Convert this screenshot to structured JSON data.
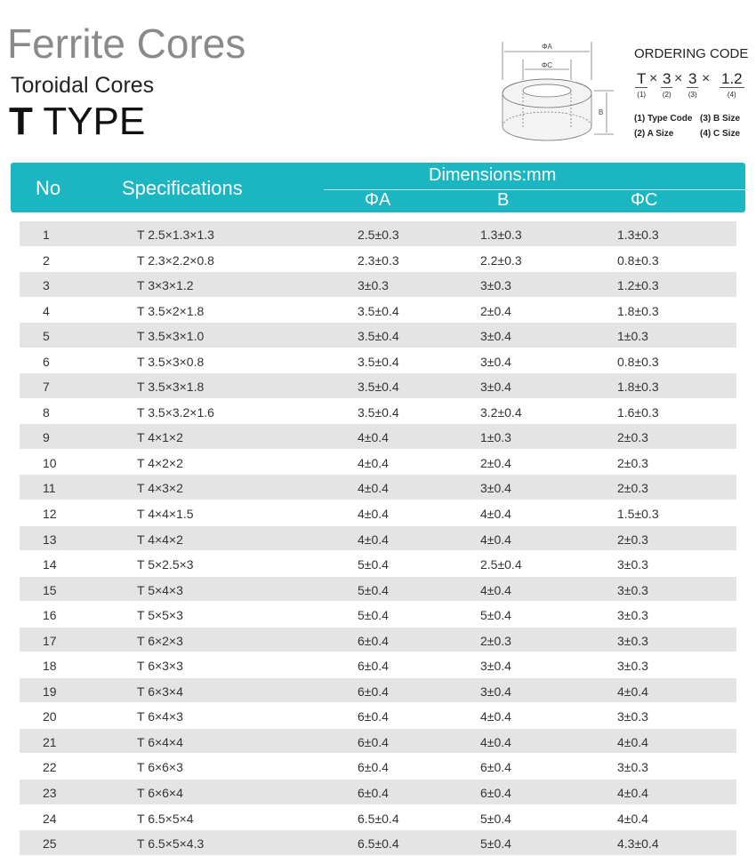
{
  "title": "Ferrite Cores",
  "subtitle": "Toroidal Cores",
  "type_prefix": "T",
  "type_suffix": "TYPE",
  "diagram": {
    "a": "ΦA",
    "c": "ΦC",
    "b": "B"
  },
  "ordering": {
    "title": "ORDERING CODE",
    "parts": [
      {
        "v": "T",
        "n": "(1)"
      },
      {
        "v": "3",
        "n": "(2)"
      },
      {
        "v": "3",
        "n": "(3)"
      },
      {
        "v": "1.2",
        "n": "(4)"
      }
    ],
    "sep": "×",
    "legend": [
      "(1) Type Code",
      "(3) B Size",
      "(2) A Size",
      "(4) C Size"
    ]
  },
  "colors": {
    "header": "#1bb6c1",
    "row_alt": "#e4e4e4"
  },
  "table": {
    "headers": {
      "no": "No",
      "spec": "Specifications",
      "dims": "Dimensions:mm",
      "a": "ΦA",
      "b": "B",
      "c": "ΦC"
    },
    "rows": [
      [
        "1",
        "T  2.5×1.3×1.3",
        "2.5±0.3",
        "1.3±0.3",
        "1.3±0.3"
      ],
      [
        "2",
        "T  2.3×2.2×0.8",
        "2.3±0.3",
        "2.2±0.3",
        "0.8±0.3"
      ],
      [
        "3",
        "T  3×3×1.2",
        "3±0.3",
        "3±0.3",
        "1.2±0.3"
      ],
      [
        "4",
        "T  3.5×2×1.8",
        "3.5±0.4",
        "2±0.4",
        "1.8±0.3"
      ],
      [
        "5",
        "T  3.5×3×1.0",
        "3.5±0.4",
        "3±0.4",
        "1±0.3"
      ],
      [
        "6",
        "T  3.5×3×0.8",
        "3.5±0.4",
        "3±0.4",
        "0.8±0.3"
      ],
      [
        "7",
        "T  3.5×3×1.8",
        "3.5±0.4",
        "3±0.4",
        "1.8±0.3"
      ],
      [
        "8",
        "T  3.5×3.2×1.6",
        "3.5±0.4",
        "3.2±0.4",
        "1.6±0.3"
      ],
      [
        "9",
        "T  4×1×2",
        "4±0.4",
        "1±0.3",
        "2±0.3"
      ],
      [
        "10",
        "T  4×2×2",
        "4±0.4",
        "2±0.4",
        "2±0.3"
      ],
      [
        "11",
        "T  4×3×2",
        "4±0.4",
        "3±0.4",
        "2±0.3"
      ],
      [
        "12",
        "T  4×4×1.5",
        "4±0.4",
        "4±0.4",
        "1.5±0.3"
      ],
      [
        "13",
        "T  4×4×2",
        "4±0.4",
        "4±0.4",
        "2±0.3"
      ],
      [
        "14",
        "T  5×2.5×3",
        "5±0.4",
        "2.5±0.4",
        "3±0.3"
      ],
      [
        "15",
        "T  5×4×3",
        "5±0.4",
        "4±0.4",
        "3±0.3"
      ],
      [
        "16",
        "T  5×5×3",
        "5±0.4",
        "5±0.4",
        "3±0.3"
      ],
      [
        "17",
        "T  6×2×3",
        "6±0.4",
        "2±0.3",
        "3±0.3"
      ],
      [
        "18",
        "T  6×3×3",
        "6±0.4",
        "3±0.4",
        "3±0.3"
      ],
      [
        "19",
        "T  6×3×4",
        "6±0.4",
        "3±0.4",
        "4±0.4"
      ],
      [
        "20",
        "T  6×4×3",
        "6±0.4",
        "4±0.4",
        "3±0.3"
      ],
      [
        "21",
        "T  6×4×4",
        "6±0.4",
        "4±0.4",
        "4±0.4"
      ],
      [
        "22",
        "T  6×6×3",
        "6±0.4",
        "6±0.4",
        "3±0.3"
      ],
      [
        "23",
        "T  6×6×4",
        "6±0.4",
        "6±0.4",
        "4±0.4"
      ],
      [
        "24",
        "T  6.5×5×4",
        "6.5±0.4",
        "5±0.4",
        "4±0.4"
      ],
      [
        "25",
        "T  6.5×5×4.3",
        "6.5±0.4",
        "5±0.4",
        "4.3±0.4"
      ]
    ]
  }
}
